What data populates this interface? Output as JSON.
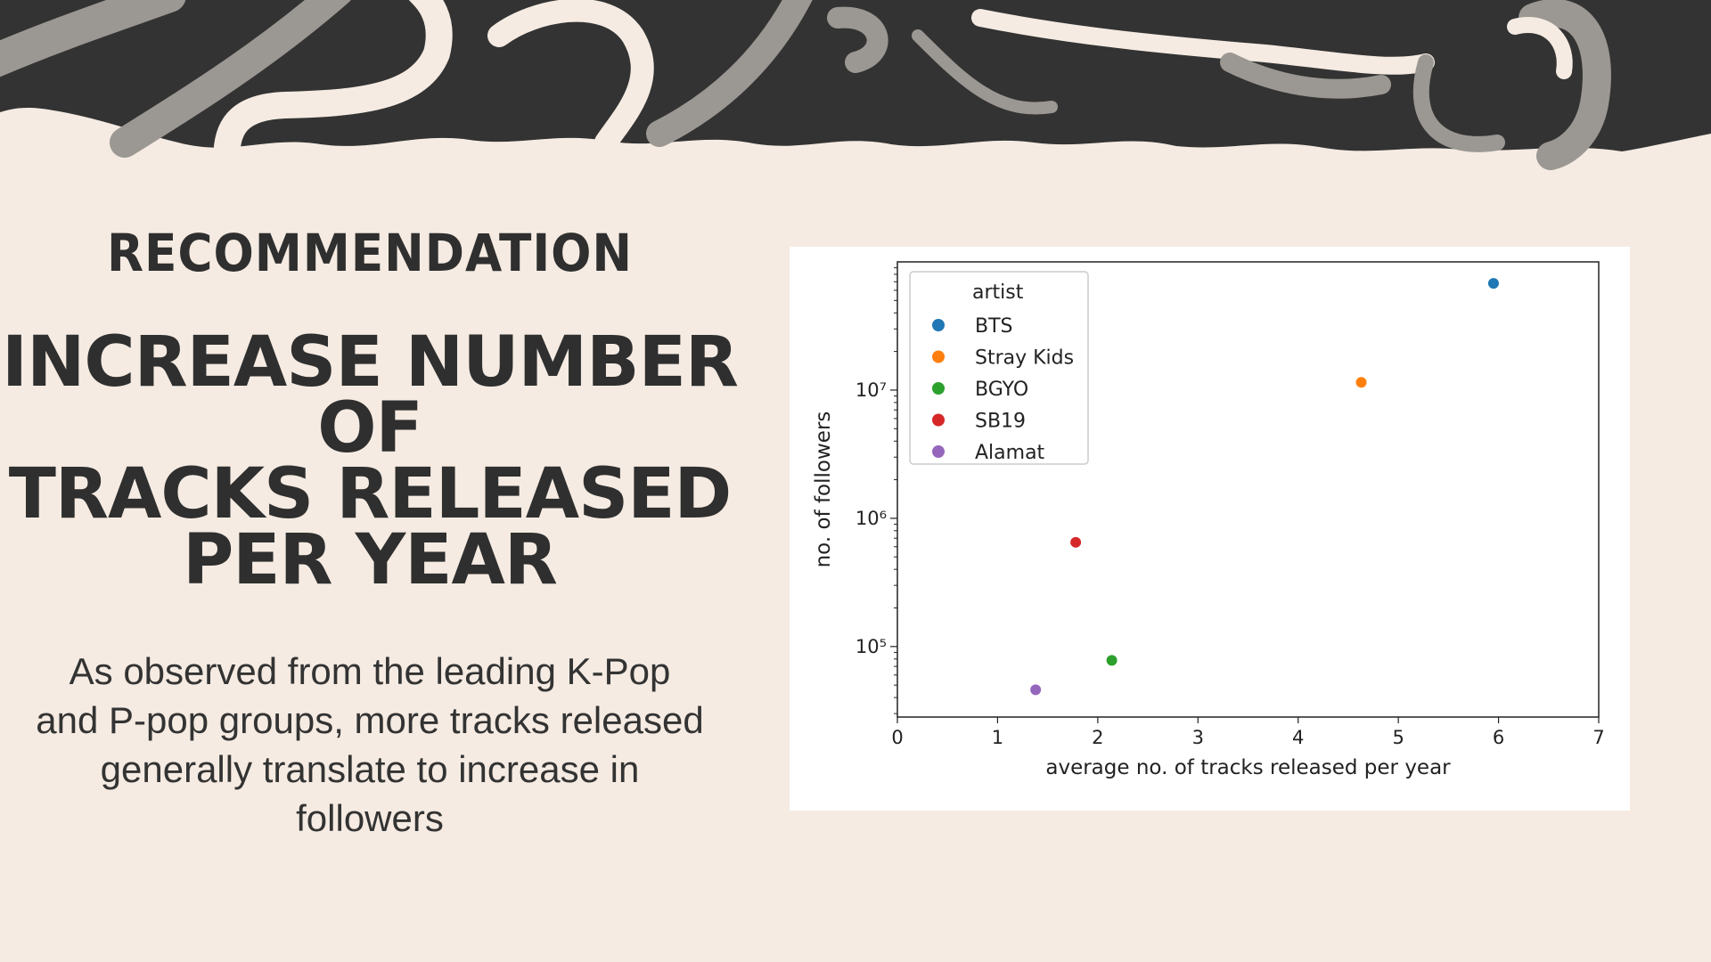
{
  "slide": {
    "eyebrow": "RECOMMENDATION",
    "headline": [
      "INCREASE NUMBER OF",
      "TRACKS RELEASED",
      "PER YEAR"
    ],
    "body": "As observed from the leading K-Pop and P-pop groups, more tracks released generally translate to increase in followers"
  },
  "colors": {
    "background": "#f5ebe2",
    "banner_dark": "#333333",
    "brush_gray": "#9b9792",
    "brush_cream": "#f5ebe2"
  },
  "chart_data": {
    "type": "scatter",
    "xlabel": "average no. of tracks released per year",
    "ylabel": "no. of followers",
    "xlim": [
      0,
      7
    ],
    "ylim_log10": [
      4.45,
      8.0
    ],
    "y_scale": "log",
    "x_ticks": [
      "0",
      "1",
      "2",
      "3",
      "4",
      "5",
      "6",
      "7"
    ],
    "y_ticks": [
      {
        "value": 100000,
        "label": "10⁵"
      },
      {
        "value": 1000000,
        "label": "10⁶"
      },
      {
        "value": 10000000,
        "label": "10⁷"
      }
    ],
    "grid": false,
    "legend": {
      "title": "artist",
      "placement": "top-left"
    },
    "series": [
      {
        "name": "BTS",
        "color": "#1f77b4",
        "x": 5.95,
        "y": 68000000
      },
      {
        "name": "Stray Kids",
        "color": "#ff7f0e",
        "x": 4.63,
        "y": 11500000
      },
      {
        "name": "BGYO",
        "color": "#2ca02c",
        "x": 2.14,
        "y": 78000
      },
      {
        "name": "SB19",
        "color": "#d62728",
        "x": 1.78,
        "y": 650000
      },
      {
        "name": "Alamat",
        "color": "#9467bd",
        "x": 1.38,
        "y": 46000
      }
    ]
  }
}
